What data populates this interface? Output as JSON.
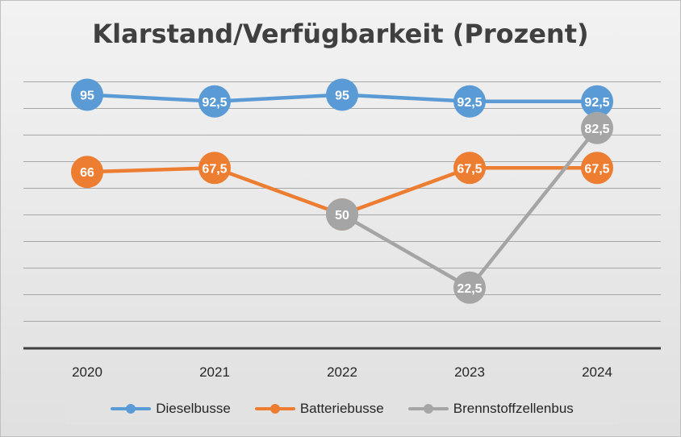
{
  "chart_data": {
    "type": "line",
    "title": "Klarstand/Verfügbarkeit (Prozent)",
    "categories": [
      "2020",
      "2021",
      "2022",
      "2023",
      "2024"
    ],
    "ylim": [
      0,
      100
    ],
    "grid": true,
    "legend_position": "bottom",
    "series": [
      {
        "name": "Dieselbusse",
        "color": "#5b9bd5",
        "values": [
          95,
          92.5,
          95,
          92.5,
          92.5
        ],
        "labels": [
          "95",
          "92,5",
          "95",
          "92,5",
          "92,5"
        ]
      },
      {
        "name": "Batteriebusse",
        "color": "#ed7d31",
        "values": [
          66,
          67.5,
          50,
          67.5,
          67.5
        ],
        "labels": [
          "66",
          "67,5",
          "50",
          "67,5",
          "67,5"
        ]
      },
      {
        "name": "Brennstoffzellenbus",
        "color": "#a5a5a5",
        "values": [
          null,
          null,
          50,
          22.5,
          82.5
        ],
        "labels": [
          "",
          "",
          "50",
          "22,5",
          "82,5"
        ]
      }
    ]
  }
}
